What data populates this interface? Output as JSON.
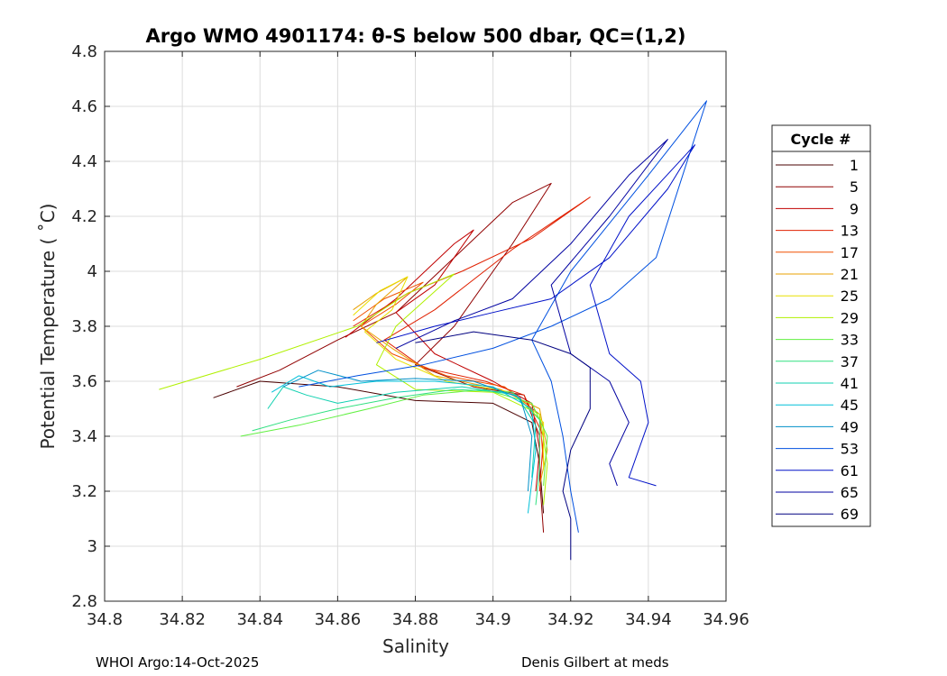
{
  "chart_data": {
    "type": "line",
    "title": "Argo WMO 4901174: θ-S below 500 dbar,  QC=(1,2)",
    "xlabel": "Salinity",
    "ylabel": "Potential Temperature ( ˚C)",
    "xlim": [
      34.8,
      34.96
    ],
    "ylim": [
      2.8,
      4.8
    ],
    "xticks": [
      "34.8",
      "34.82",
      "34.84",
      "34.86",
      "34.88",
      "34.9",
      "34.92",
      "34.94",
      "34.96"
    ],
    "yticks": [
      "2.8",
      "3",
      "3.2",
      "3.4",
      "3.6",
      "3.8",
      "4",
      "4.2",
      "4.4",
      "4.6",
      "4.8"
    ],
    "grid": true,
    "legend": {
      "title": "Cycle #",
      "position": "outside-right"
    },
    "series": [
      {
        "name": "1",
        "color": "#4a0000",
        "points": [
          [
            34.828,
            3.54
          ],
          [
            34.84,
            3.6
          ],
          [
            34.86,
            3.58
          ],
          [
            34.88,
            3.53
          ],
          [
            34.9,
            3.52
          ],
          [
            34.91,
            3.45
          ],
          [
            34.912,
            3.3
          ],
          [
            34.913,
            3.12
          ]
        ]
      },
      {
        "name": "5",
        "color": "#900000",
        "points": [
          [
            34.834,
            3.58
          ],
          [
            34.845,
            3.64
          ],
          [
            34.86,
            3.75
          ],
          [
            34.875,
            3.85
          ],
          [
            34.89,
            4.05
          ],
          [
            34.905,
            4.25
          ],
          [
            34.915,
            4.32
          ],
          [
            34.905,
            4.1
          ],
          [
            34.89,
            3.8
          ],
          [
            34.88,
            3.66
          ],
          [
            34.895,
            3.58
          ],
          [
            34.908,
            3.55
          ],
          [
            34.912,
            3.4
          ],
          [
            34.912,
            3.25
          ],
          [
            34.913,
            3.05
          ]
        ]
      },
      {
        "name": "9",
        "color": "#c00000",
        "points": [
          [
            34.862,
            3.76
          ],
          [
            34.875,
            3.9
          ],
          [
            34.89,
            4.1
          ],
          [
            34.895,
            4.15
          ],
          [
            34.885,
            3.95
          ],
          [
            34.875,
            3.85
          ],
          [
            34.885,
            3.7
          ],
          [
            34.9,
            3.6
          ],
          [
            34.91,
            3.52
          ],
          [
            34.912,
            3.35
          ],
          [
            34.911,
            3.2
          ]
        ]
      },
      {
        "name": "13",
        "color": "#e02000",
        "points": [
          [
            34.864,
            3.8
          ],
          [
            34.878,
            3.92
          ],
          [
            34.892,
            4.0
          ],
          [
            34.91,
            4.12
          ],
          [
            34.925,
            4.27
          ],
          [
            34.905,
            4.08
          ],
          [
            34.885,
            3.86
          ],
          [
            34.872,
            3.75
          ],
          [
            34.882,
            3.65
          ],
          [
            34.898,
            3.6
          ],
          [
            34.908,
            3.55
          ],
          [
            34.913,
            3.4
          ],
          [
            34.912,
            3.2
          ]
        ]
      },
      {
        "name": "17",
        "color": "#f05000",
        "points": [
          [
            34.864,
            3.82
          ],
          [
            34.872,
            3.9
          ],
          [
            34.882,
            3.96
          ],
          [
            34.875,
            3.88
          ],
          [
            34.866,
            3.8
          ],
          [
            34.874,
            3.7
          ],
          [
            34.888,
            3.62
          ],
          [
            34.903,
            3.58
          ],
          [
            34.912,
            3.48
          ],
          [
            34.913,
            3.3
          ]
        ]
      },
      {
        "name": "21",
        "color": "#e8a000",
        "points": [
          [
            34.864,
            3.86
          ],
          [
            34.87,
            3.92
          ],
          [
            34.878,
            3.98
          ],
          [
            34.87,
            3.88
          ],
          [
            34.866,
            3.8
          ],
          [
            34.874,
            3.72
          ],
          [
            34.885,
            3.62
          ],
          [
            34.902,
            3.57
          ],
          [
            34.912,
            3.5
          ],
          [
            34.914,
            3.35
          ],
          [
            34.912,
            3.22
          ]
        ]
      },
      {
        "name": "25",
        "color": "#e8e000",
        "points": [
          [
            34.864,
            3.84
          ],
          [
            34.871,
            3.93
          ],
          [
            34.878,
            3.98
          ],
          [
            34.874,
            3.86
          ],
          [
            34.867,
            3.78
          ],
          [
            34.875,
            3.68
          ],
          [
            34.888,
            3.6
          ],
          [
            34.905,
            3.56
          ],
          [
            34.913,
            3.45
          ],
          [
            34.913,
            3.28
          ]
        ]
      },
      {
        "name": "29",
        "color": "#b0f000",
        "points": [
          [
            34.814,
            3.57
          ],
          [
            34.84,
            3.68
          ],
          [
            34.865,
            3.8
          ],
          [
            34.878,
            3.92
          ],
          [
            34.89,
            3.99
          ],
          [
            34.875,
            3.8
          ],
          [
            34.87,
            3.66
          ],
          [
            34.88,
            3.57
          ],
          [
            34.9,
            3.56
          ],
          [
            34.912,
            3.48
          ],
          [
            34.914,
            3.3
          ],
          [
            34.913,
            3.15
          ]
        ]
      },
      {
        "name": "33",
        "color": "#60f040",
        "points": [
          [
            34.835,
            3.4
          ],
          [
            34.85,
            3.44
          ],
          [
            34.868,
            3.5
          ],
          [
            34.882,
            3.55
          ],
          [
            34.898,
            3.57
          ],
          [
            34.91,
            3.52
          ],
          [
            34.914,
            3.4
          ],
          [
            34.913,
            3.22
          ]
        ]
      },
      {
        "name": "37",
        "color": "#30e080",
        "points": [
          [
            34.838,
            3.42
          ],
          [
            34.848,
            3.46
          ],
          [
            34.86,
            3.5
          ],
          [
            34.875,
            3.54
          ],
          [
            34.89,
            3.57
          ],
          [
            34.905,
            3.56
          ],
          [
            34.912,
            3.46
          ],
          [
            34.912,
            3.28
          ],
          [
            34.911,
            3.15
          ]
        ]
      },
      {
        "name": "41",
        "color": "#10d0b0",
        "points": [
          [
            34.842,
            3.5
          ],
          [
            34.846,
            3.58
          ],
          [
            34.852,
            3.55
          ],
          [
            34.86,
            3.52
          ],
          [
            34.875,
            3.56
          ],
          [
            34.892,
            3.58
          ],
          [
            34.906,
            3.55
          ],
          [
            34.911,
            3.44
          ],
          [
            34.91,
            3.25
          ]
        ]
      },
      {
        "name": "45",
        "color": "#00c0d8",
        "points": [
          [
            34.843,
            3.56
          ],
          [
            34.85,
            3.62
          ],
          [
            34.858,
            3.58
          ],
          [
            34.87,
            3.6
          ],
          [
            34.885,
            3.6
          ],
          [
            34.9,
            3.58
          ],
          [
            34.91,
            3.5
          ],
          [
            34.911,
            3.35
          ],
          [
            34.909,
            3.12
          ]
        ]
      },
      {
        "name": "49",
        "color": "#0090c8",
        "points": [
          [
            34.846,
            3.58
          ],
          [
            34.855,
            3.64
          ],
          [
            34.866,
            3.6
          ],
          [
            34.88,
            3.61
          ],
          [
            34.895,
            3.6
          ],
          [
            34.907,
            3.54
          ],
          [
            34.91,
            3.4
          ],
          [
            34.909,
            3.2
          ]
        ]
      },
      {
        "name": "53",
        "color": "#0050e0",
        "points": [
          [
            34.85,
            3.58
          ],
          [
            34.865,
            3.62
          ],
          [
            34.882,
            3.66
          ],
          [
            34.9,
            3.72
          ],
          [
            34.915,
            3.8
          ],
          [
            34.93,
            3.9
          ],
          [
            34.942,
            4.05
          ],
          [
            34.955,
            4.62
          ],
          [
            34.94,
            4.35
          ],
          [
            34.92,
            4.0
          ],
          [
            34.91,
            3.75
          ],
          [
            34.915,
            3.6
          ],
          [
            34.918,
            3.4
          ],
          [
            34.92,
            3.2
          ],
          [
            34.922,
            3.05
          ]
        ]
      },
      {
        "name": "61",
        "color": "#0010c8",
        "points": [
          [
            34.87,
            3.74
          ],
          [
            34.885,
            3.8
          ],
          [
            34.9,
            3.85
          ],
          [
            34.915,
            3.9
          ],
          [
            34.93,
            4.05
          ],
          [
            34.945,
            4.3
          ],
          [
            34.952,
            4.46
          ],
          [
            34.935,
            4.2
          ],
          [
            34.925,
            3.95
          ],
          [
            34.93,
            3.7
          ],
          [
            34.938,
            3.6
          ],
          [
            34.94,
            3.45
          ],
          [
            34.935,
            3.25
          ],
          [
            34.942,
            3.22
          ]
        ]
      },
      {
        "name": "65",
        "color": "#0000a0",
        "points": [
          [
            34.875,
            3.72
          ],
          [
            34.89,
            3.82
          ],
          [
            34.905,
            3.9
          ],
          [
            34.92,
            4.1
          ],
          [
            34.935,
            4.35
          ],
          [
            34.945,
            4.48
          ],
          [
            34.93,
            4.2
          ],
          [
            34.915,
            3.95
          ],
          [
            34.92,
            3.7
          ],
          [
            34.93,
            3.6
          ],
          [
            34.935,
            3.45
          ],
          [
            34.93,
            3.3
          ],
          [
            34.932,
            3.22
          ]
        ]
      },
      {
        "name": "69",
        "color": "#000080",
        "points": [
          [
            34.88,
            3.74
          ],
          [
            34.895,
            3.78
          ],
          [
            34.91,
            3.75
          ],
          [
            34.92,
            3.7
          ],
          [
            34.925,
            3.65
          ],
          [
            34.925,
            3.5
          ],
          [
            34.92,
            3.35
          ],
          [
            34.918,
            3.2
          ],
          [
            34.92,
            3.1
          ],
          [
            34.92,
            2.95
          ]
        ]
      }
    ]
  },
  "footer": {
    "left": "WHOI Argo:14-Oct-2025",
    "right": "Denis Gilbert at meds"
  }
}
